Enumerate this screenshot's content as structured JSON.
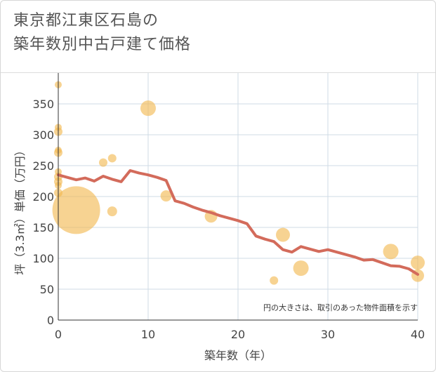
{
  "title_line1": "東京都江東区石島の",
  "title_line2": "築年数別中古戸建て価格",
  "colors": {
    "line": "#d36b5b",
    "bubble": "#f2b84f",
    "grid": "#cfdbe6",
    "axis": "#333333"
  },
  "chart_data": {
    "type": "scatter",
    "xlabel": "築年数（年）",
    "ylabel": "坪（3.3㎡）単価（万円）",
    "xlim": [
      0,
      40
    ],
    "ylim": [
      0,
      400
    ],
    "xticks": [
      0,
      10,
      20,
      30,
      40
    ],
    "yticks": [
      0,
      50,
      100,
      150,
      200,
      250,
      300,
      350
    ],
    "note": "円の大きさは、取引のあった物件面積を示す",
    "grid": true,
    "trend_line": {
      "x": [
        0,
        1,
        2,
        3,
        4,
        5,
        6,
        7,
        8,
        9,
        10,
        11,
        12,
        13,
        14,
        15,
        16,
        17,
        18,
        19,
        20,
        21,
        22,
        23,
        24,
        25,
        26,
        27,
        28,
        29,
        30,
        31,
        32,
        33,
        34,
        35,
        36,
        37,
        38,
        39,
        40
      ],
      "y": [
        235,
        231,
        227,
        230,
        225,
        233,
        228,
        224,
        242,
        238,
        235,
        231,
        226,
        193,
        189,
        183,
        178,
        174,
        169,
        165,
        161,
        156,
        136,
        131,
        127,
        114,
        110,
        119,
        115,
        111,
        114,
        110,
        106,
        102,
        97,
        98,
        93,
        88,
        87,
        83,
        74
      ]
    },
    "bubbles": [
      {
        "x": 0,
        "y": 381,
        "size": 5
      },
      {
        "x": 0,
        "y": 312,
        "size": 5
      },
      {
        "x": 0,
        "y": 305,
        "size": 6
      },
      {
        "x": 0,
        "y": 275,
        "size": 5
      },
      {
        "x": 0,
        "y": 271,
        "size": 6
      },
      {
        "x": 0,
        "y": 240,
        "size": 5
      },
      {
        "x": 0,
        "y": 232,
        "size": 6
      },
      {
        "x": 0,
        "y": 224,
        "size": 6
      },
      {
        "x": 0,
        "y": 218,
        "size": 5
      },
      {
        "x": 0,
        "y": 206,
        "size": 6
      },
      {
        "x": 2,
        "y": 178,
        "size": 34
      },
      {
        "x": 5,
        "y": 255,
        "size": 6
      },
      {
        "x": 6,
        "y": 262,
        "size": 6
      },
      {
        "x": 6,
        "y": 176,
        "size": 7
      },
      {
        "x": 10,
        "y": 343,
        "size": 11
      },
      {
        "x": 12,
        "y": 201,
        "size": 8
      },
      {
        "x": 17,
        "y": 168,
        "size": 9
      },
      {
        "x": 24,
        "y": 64,
        "size": 6
      },
      {
        "x": 25,
        "y": 138,
        "size": 10
      },
      {
        "x": 27,
        "y": 84,
        "size": 11
      },
      {
        "x": 37,
        "y": 111,
        "size": 11
      },
      {
        "x": 40,
        "y": 93,
        "size": 10
      },
      {
        "x": 40,
        "y": 72,
        "size": 9
      }
    ]
  }
}
